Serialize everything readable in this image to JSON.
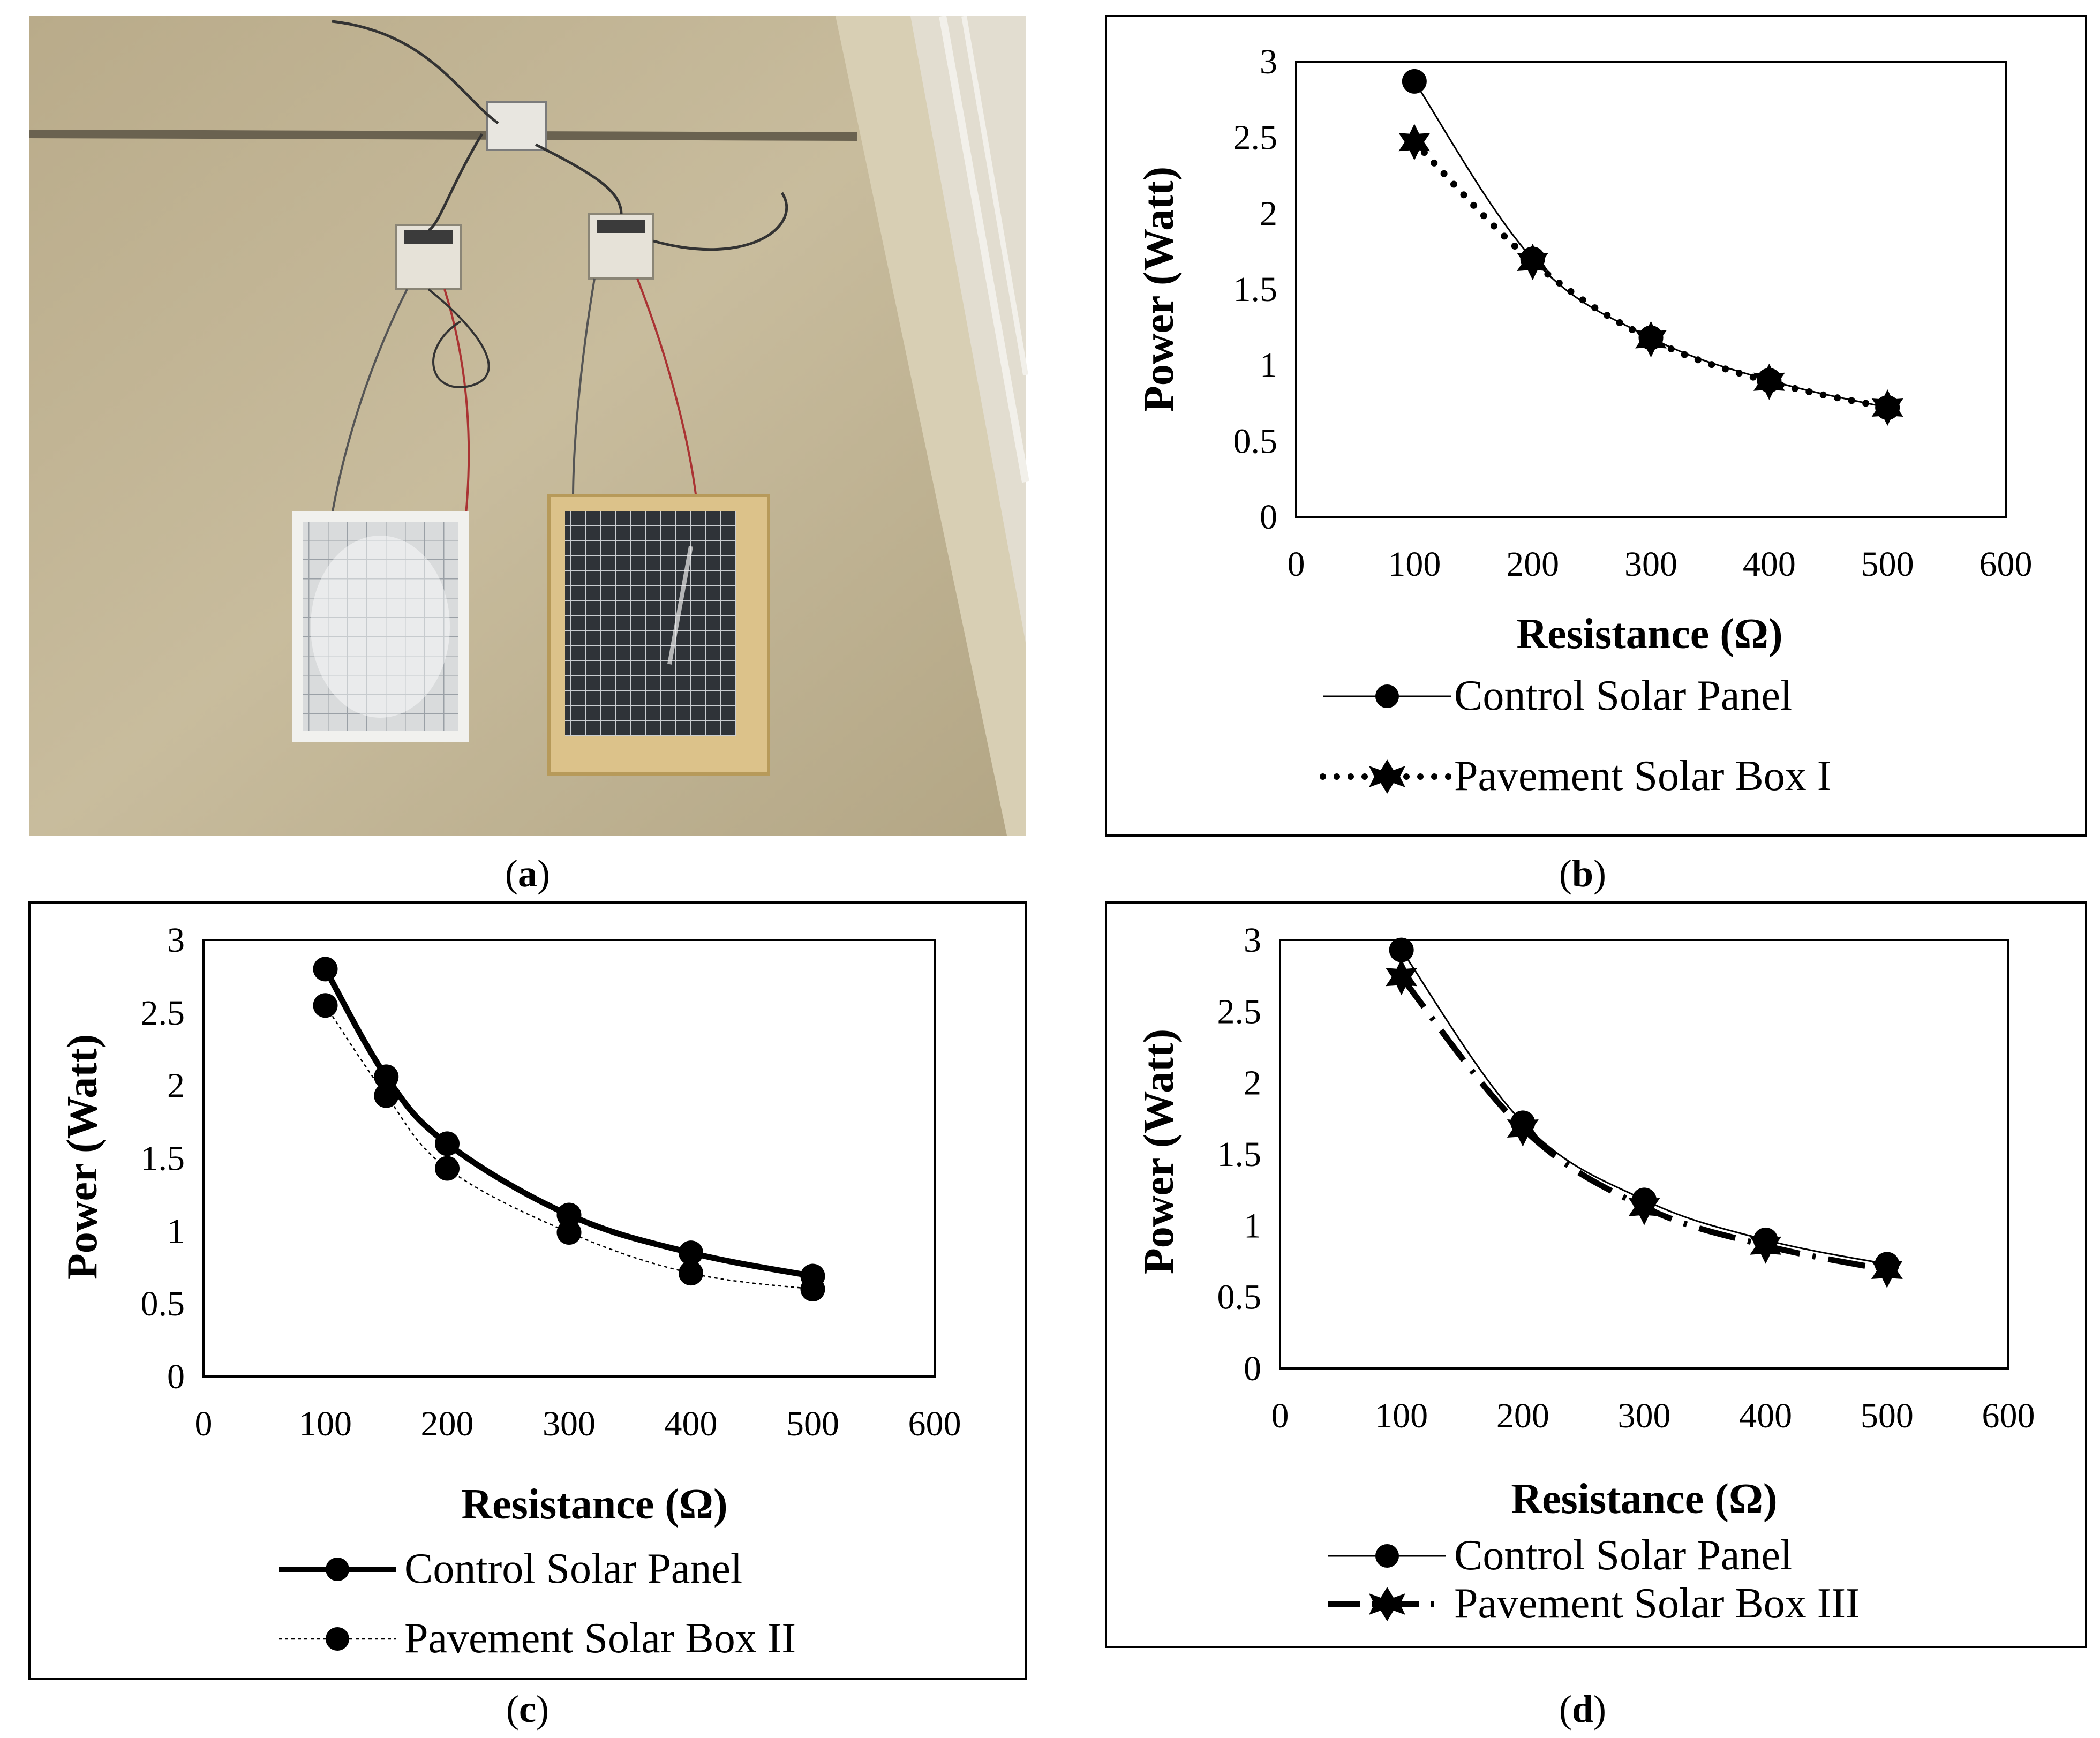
{
  "panels": [
    {
      "id": "a",
      "caption": "a",
      "type": "photo",
      "photo_description_icon": "two-solar-panels-on-pavement-photo"
    }
  ],
  "chart_data": [
    {
      "id": "b",
      "caption": "b",
      "type": "line",
      "title": "",
      "xlabel": "Resistance (Ω)",
      "ylabel": "Power (Watt)",
      "xlim": [
        0,
        600
      ],
      "ylim": [
        0,
        3
      ],
      "xticks": [
        "0",
        "100",
        "200",
        "300",
        "400",
        "500",
        "600"
      ],
      "yticks": [
        "0",
        "0.5",
        "1",
        "1.5",
        "2",
        "2.5",
        "3"
      ],
      "grid": false,
      "legend_placement": "bottom",
      "x": [
        100,
        200,
        300,
        400,
        500
      ],
      "series": [
        {
          "name": "Control Solar Panel",
          "values": [
            2.87,
            1.7,
            1.18,
            0.9,
            0.72
          ],
          "style": "thin-solid",
          "marker": "circle"
        },
        {
          "name": "Pavement Solar Box I",
          "values": [
            2.47,
            1.68,
            1.17,
            0.89,
            0.72
          ],
          "style": "dotted",
          "marker": "star"
        }
      ]
    },
    {
      "id": "c",
      "caption": "c",
      "type": "line",
      "title": "",
      "xlabel": "Resistance (Ω)",
      "ylabel": "Power (Watt)",
      "xlim": [
        0,
        600
      ],
      "ylim": [
        0,
        3
      ],
      "xticks": [
        "0",
        "100",
        "200",
        "300",
        "400",
        "500",
        "600"
      ],
      "yticks": [
        "0",
        "0.5",
        "1",
        "1.5",
        "2",
        "2.5",
        "3"
      ],
      "grid": false,
      "legend_placement": "bottom",
      "x": [
        100,
        150,
        200,
        300,
        400,
        500
      ],
      "series": [
        {
          "name": "Control Solar Panel",
          "values": [
            2.8,
            2.06,
            1.6,
            1.11,
            0.85,
            0.69
          ],
          "style": "thick-solid",
          "marker": "circle"
        },
        {
          "name": "Pavement Solar Box II",
          "values": [
            2.55,
            1.93,
            1.43,
            0.99,
            0.71,
            0.6
          ],
          "style": "thin-dotted",
          "marker": "circle"
        }
      ]
    },
    {
      "id": "d",
      "caption": "d",
      "type": "line",
      "title": "",
      "xlabel": "Resistance (Ω)",
      "ylabel": "Power (Watt)",
      "xlim": [
        0,
        600
      ],
      "ylim": [
        0,
        3
      ],
      "xticks": [
        "0",
        "100",
        "200",
        "300",
        "400",
        "500",
        "600"
      ],
      "yticks": [
        "0",
        "0.5",
        "1",
        "1.5",
        "2",
        "2.5",
        "3"
      ],
      "grid": false,
      "legend_placement": "bottom",
      "x": [
        100,
        200,
        300,
        400,
        500
      ],
      "series": [
        {
          "name": "Control Solar Panel",
          "values": [
            2.93,
            1.72,
            1.18,
            0.9,
            0.73
          ],
          "style": "thin-solid",
          "marker": "circle"
        },
        {
          "name": "Pavement Solar Box III",
          "values": [
            2.74,
            1.68,
            1.13,
            0.86,
            0.69
          ],
          "style": "dash-dot",
          "marker": "star"
        }
      ]
    }
  ]
}
